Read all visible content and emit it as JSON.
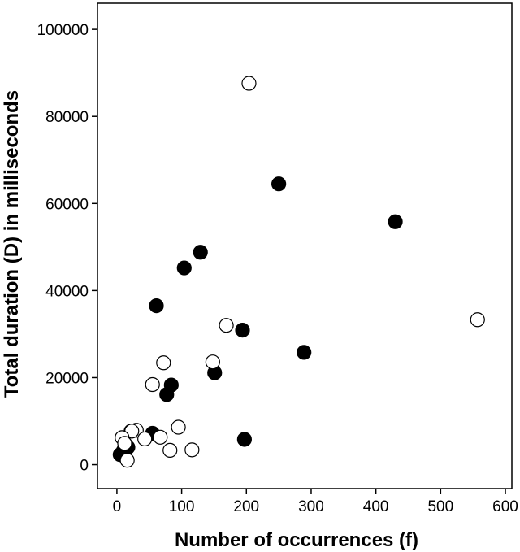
{
  "chart_data": {
    "type": "scatter",
    "title": "",
    "xlabel": "Number of occurrences (f)",
    "ylabel": "Total duration (D) in milliseconds",
    "xlim": [
      -30,
      610
    ],
    "ylim": [
      -5500,
      106000
    ],
    "x_ticks": [
      0,
      100,
      200,
      300,
      400,
      500,
      600
    ],
    "y_ticks": [
      0,
      20000,
      40000,
      60000,
      80000,
      100000
    ],
    "x_tick_labels": [
      "0",
      "100",
      "200",
      "300",
      "400",
      "500",
      "600"
    ],
    "y_tick_labels": [
      "0",
      "20000",
      "40000",
      "60000",
      "80000",
      "100000"
    ],
    "grid": false,
    "legend": "none",
    "series": [
      {
        "marker": "filled-circle",
        "color": "#000000",
        "x": [
          250,
          430,
          129,
          104,
          61,
          194,
          289,
          151,
          84,
          77,
          197,
          55,
          5,
          10,
          13,
          17,
          22
        ],
        "y": [
          64500,
          55800,
          48800,
          45200,
          36500,
          30900,
          25800,
          21100,
          18300,
          16100,
          5800,
          7200,
          2300,
          3200,
          4700,
          4000,
          7700
        ]
      },
      {
        "marker": "open-circle",
        "color": "#000000",
        "x": [
          204,
          557,
          169,
          72,
          148,
          55,
          95,
          67,
          30,
          23,
          43,
          8,
          12,
          82,
          116,
          16
        ],
        "y": [
          87600,
          33300,
          32000,
          23400,
          23600,
          18400,
          8600,
          6300,
          7900,
          7700,
          5900,
          6200,
          4900,
          3300,
          3400,
          1000
        ]
      }
    ]
  }
}
